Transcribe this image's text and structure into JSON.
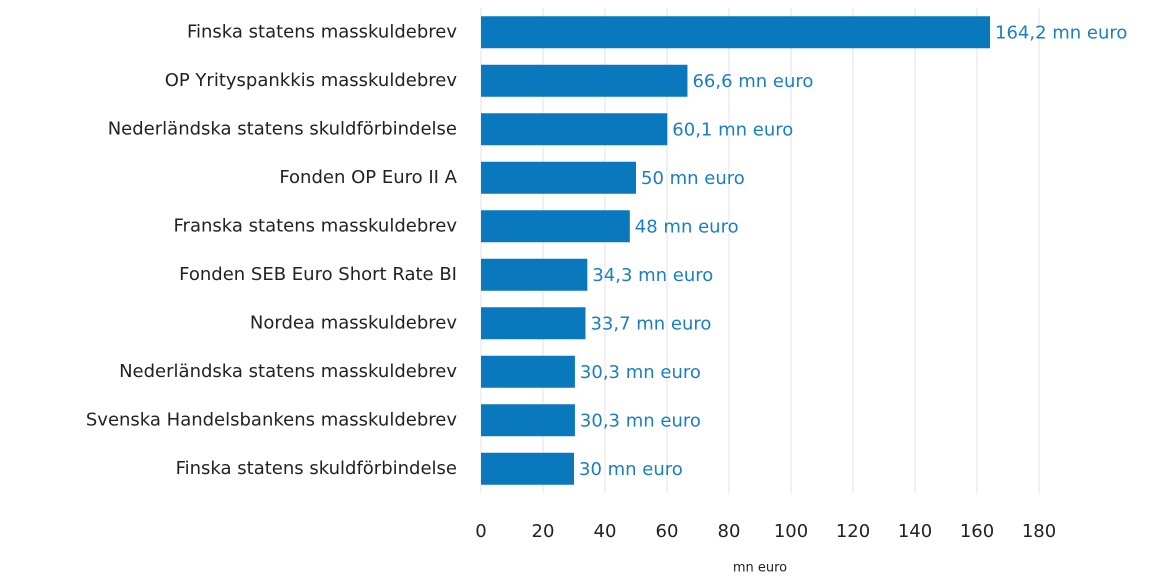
{
  "chart_data": {
    "type": "bar",
    "orientation": "horizontal",
    "categories": [
      "Finska statens masskuldebrev",
      "OP Yrityspankkis masskuldebrev",
      "Nederländska statens skuldförbindelse",
      "Fonden OP Euro II A",
      "Franska statens masskuldebrev",
      "Fonden SEB Euro Short Rate BI",
      "Nordea masskuldebrev",
      "Nederländska statens masskuldebrev",
      "Svenska Handelsbankens masskuldebrev",
      "Finska statens skuldförbindelse"
    ],
    "values": [
      164.2,
      66.6,
      60.1,
      50,
      48,
      34.3,
      33.7,
      30.3,
      30.3,
      30
    ],
    "value_labels": [
      "164,2 mn euro",
      "66,6 mn euro",
      "60,1 mn euro",
      "50 mn euro",
      "48 mn euro",
      "34,3 mn euro",
      "33,7 mn euro",
      "30,3 mn euro",
      "30,3 mn euro",
      "30 mn euro"
    ],
    "color": "#0a78bd",
    "xlabel": "mn euro",
    "xlim": [
      0,
      180
    ],
    "xticks": [
      0,
      20,
      40,
      60,
      80,
      100,
      120,
      140,
      160,
      180
    ],
    "grid": true
  }
}
